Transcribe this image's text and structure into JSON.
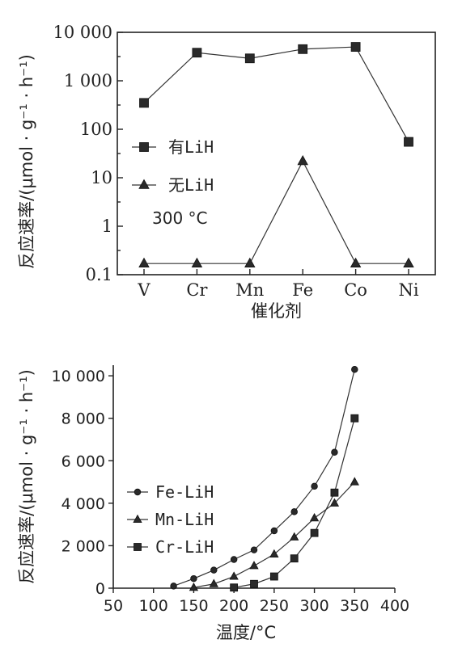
{
  "chart_data": [
    {
      "type": "line",
      "yscale": "log",
      "categories": [
        "V",
        "Cr",
        "Mn",
        "Fe",
        "Co",
        "Ni"
      ],
      "ylim": [
        0.1,
        10000
      ],
      "yticks": [
        0.1,
        1,
        10,
        100,
        1000,
        10000
      ],
      "ytick_labels": [
        "0.1",
        "1",
        "10",
        "100",
        "1 000",
        "10 000"
      ],
      "xlabel": "催化剂",
      "ylabel": "反应速率/(μmol · g⁻¹ · h⁻¹)",
      "annotation": "300 °C",
      "legend_position": "middle-left",
      "series": [
        {
          "name": "有LiH",
          "marker": "square",
          "values": [
            350,
            3800,
            2900,
            4500,
            5000,
            55
          ]
        },
        {
          "name": "无LiH",
          "marker": "triangle",
          "values": [
            0.17,
            0.17,
            0.17,
            22,
            0.17,
            0.17
          ]
        }
      ]
    },
    {
      "type": "line",
      "xlim": [
        50,
        400
      ],
      "ylim": [
        0,
        10500
      ],
      "xticks": [
        50,
        100,
        150,
        200,
        250,
        300,
        350,
        400
      ],
      "yticks": [
        0,
        2000,
        4000,
        6000,
        8000,
        10000
      ],
      "ytick_labels": [
        "0",
        "2 000",
        "4 000",
        "6 000",
        "8 000",
        "10 000"
      ],
      "xlabel": "温度/°C",
      "ylabel": "反应速率/(μmol · g⁻¹ · h⁻¹)",
      "legend_position": "middle-left",
      "series": [
        {
          "name": "Fe-LiH",
          "marker": "circle",
          "x": [
            125,
            150,
            175,
            200,
            225,
            250,
            275,
            300,
            325,
            350
          ],
          "y": [
            100,
            450,
            850,
            1350,
            1800,
            2700,
            3600,
            4800,
            6400,
            10300
          ]
        },
        {
          "name": "Mn-LiH",
          "marker": "triangle",
          "x": [
            150,
            175,
            200,
            225,
            250,
            275,
            300,
            325,
            350
          ],
          "y": [
            30,
            200,
            550,
            1050,
            1600,
            2400,
            3300,
            4000,
            5000
          ]
        },
        {
          "name": "Cr-LiH",
          "marker": "square",
          "x": [
            200,
            225,
            250,
            275,
            300,
            325,
            350
          ],
          "y": [
            30,
            200,
            550,
            1400,
            2600,
            4500,
            8000
          ]
        }
      ]
    }
  ]
}
